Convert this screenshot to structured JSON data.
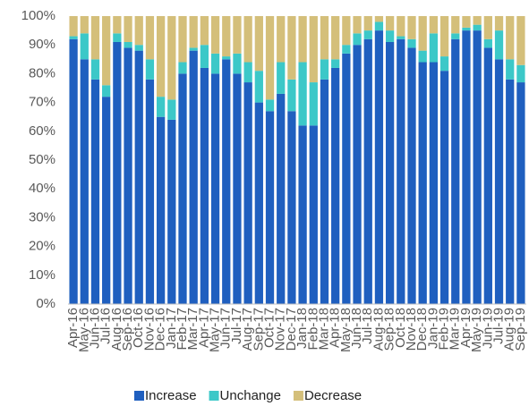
{
  "chart_data": {
    "type": "stacked_bar",
    "categories": [
      "Apr-16",
      "May-16",
      "Jun-16",
      "Jul-16",
      "Aug-16",
      "Sep-16",
      "Oct-16",
      "Nov-16",
      "Dec-16",
      "Jan-17",
      "Feb-17",
      "Mar-17",
      "Apr-17",
      "May-17",
      "Jun-17",
      "Jul-17",
      "Aug-17",
      "Sep-17",
      "Oct-17",
      "Nov-17",
      "Dec-17",
      "Jan-18",
      "Feb-18",
      "Mar-18",
      "Apr-18",
      "May-18",
      "Jun-18",
      "Jul-18",
      "Aug-18",
      "Sep-18",
      "Oct-18",
      "Nov-18",
      "Dec-18",
      "Jan-19",
      "Feb-19",
      "Mar-19",
      "Apr-19",
      "May-19",
      "Jun-19",
      "Jul-19",
      "Aug-19",
      "Sep-19"
    ],
    "series": [
      {
        "name": "Increase",
        "color": "#1f5fbf",
        "values": [
          92,
          85,
          78,
          72,
          91,
          89,
          88,
          78,
          65,
          64,
          80,
          88,
          82,
          80,
          85,
          80,
          77,
          70,
          67,
          73,
          67,
          62,
          62,
          78,
          82,
          87,
          90,
          92,
          95,
          91,
          92,
          89,
          84,
          84,
          81,
          92,
          95,
          95,
          89,
          85,
          78,
          77
        ]
      },
      {
        "name": "Unchange",
        "color": "#3cc8c8",
        "values": [
          1,
          9,
          7,
          4,
          3,
          2,
          2,
          7,
          7,
          7,
          4,
          1,
          8,
          7,
          1,
          7,
          7,
          11,
          4,
          11,
          11,
          22,
          15,
          7,
          3,
          3,
          4,
          3,
          3,
          4,
          1,
          3,
          4,
          10,
          5,
          2,
          1,
          2,
          3,
          10,
          7,
          6
        ]
      },
      {
        "name": "Decrease",
        "color": "#d4bf7a",
        "values": [
          7,
          6,
          15,
          24,
          6,
          9,
          10,
          15,
          28,
          29,
          16,
          11,
          10,
          13,
          14,
          13,
          16,
          19,
          29,
          16,
          22,
          16,
          23,
          15,
          15,
          10,
          6,
          5,
          2,
          5,
          7,
          8,
          12,
          6,
          14,
          6,
          4,
          3,
          8,
          5,
          15,
          17
        ]
      }
    ],
    "ylim": [
      0,
      100
    ],
    "yticks": [
      {
        "value": 0,
        "label": "0%"
      },
      {
        "value": 10,
        "label": "10%"
      },
      {
        "value": 20,
        "label": "20%"
      },
      {
        "value": 30,
        "label": "30%"
      },
      {
        "value": 40,
        "label": "40%"
      },
      {
        "value": 50,
        "label": "50%"
      },
      {
        "value": 60,
        "label": "60%"
      },
      {
        "value": 70,
        "label": "70%"
      },
      {
        "value": 80,
        "label": "80%"
      },
      {
        "value": 90,
        "label": "90%"
      },
      {
        "value": 100,
        "label": "100%"
      }
    ],
    "grid": false,
    "legend": "bottom"
  }
}
